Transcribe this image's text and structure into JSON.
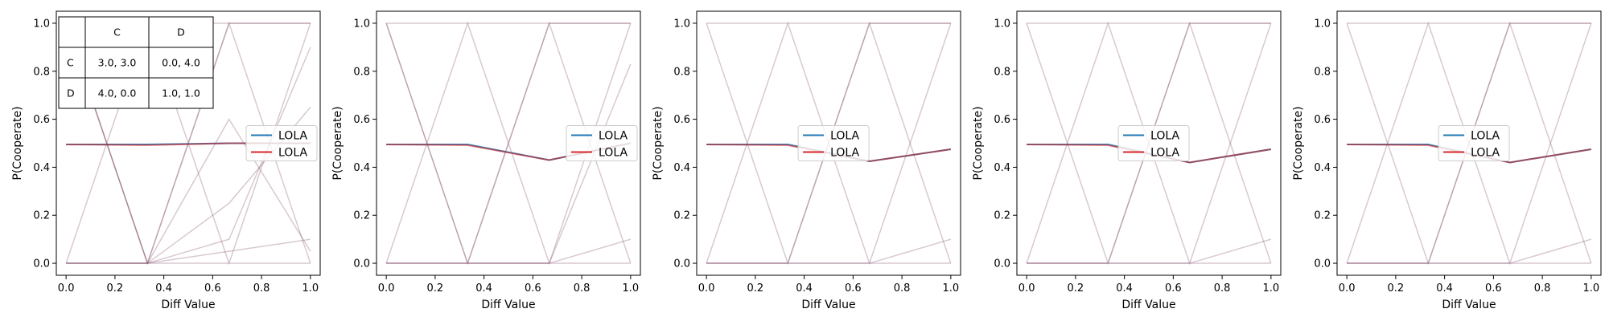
{
  "chart_data": [
    {
      "type": "line",
      "xlabel": "Diff Value",
      "ylabel": "P(Cooperate)",
      "xlim": [
        -0.04,
        1.04
      ],
      "ylim": [
        -0.05,
        1.05
      ],
      "xticks": [
        "0.0",
        "0.2",
        "0.4",
        "0.6",
        "0.8",
        "1.0"
      ],
      "yticks": [
        "0.0",
        "0.2",
        "0.4",
        "0.6",
        "0.8",
        "1.0"
      ],
      "legend": {
        "placement": "center-right",
        "entries": [
          {
            "label": "LOLA",
            "color": "#1f77b4"
          },
          {
            "label": "LOLA",
            "color": "#d62728"
          }
        ]
      },
      "x": [
        0,
        0.333,
        0.667,
        1.0
      ],
      "series": [
        {
          "color": "#1f77b4",
          "role": "mean",
          "values": [
            0.495,
            0.495,
            0.5,
            0.5
          ]
        },
        {
          "color": "#d62728",
          "role": "mean",
          "values": [
            0.495,
            0.492,
            0.5,
            0.5
          ]
        }
      ],
      "background_runs": [
        [
          1,
          0,
          1,
          0
        ],
        [
          0,
          1,
          0,
          1
        ],
        [
          1,
          1,
          1,
          1
        ],
        [
          0,
          0,
          0,
          0
        ],
        [
          0,
          0,
          1,
          1
        ],
        [
          1,
          0,
          0.6,
          0.05
        ],
        [
          0,
          0,
          0.25,
          0.65
        ],
        [
          1,
          0,
          0.1,
          0.9
        ],
        [
          0,
          0,
          0.05,
          0.1
        ]
      ],
      "payoff_table": {
        "col_headers": [
          "",
          "C",
          "D"
        ],
        "rows": [
          {
            "label": "C",
            "cells": [
              "3.0, 3.0",
              "0.0, 4.0"
            ]
          },
          {
            "label": "D",
            "cells": [
              "4.0, 0.0",
              "1.0, 1.0"
            ]
          }
        ]
      }
    },
    {
      "type": "line",
      "xlabel": "Diff Value",
      "ylabel": "P(Cooperate)",
      "xlim": [
        -0.04,
        1.04
      ],
      "ylim": [
        -0.05,
        1.05
      ],
      "xticks": [
        "0.0",
        "0.2",
        "0.4",
        "0.6",
        "0.8",
        "1.0"
      ],
      "yticks": [
        "0.0",
        "0.2",
        "0.4",
        "0.6",
        "0.8",
        "1.0"
      ],
      "legend": {
        "placement": "center-right",
        "entries": [
          {
            "label": "LOLA",
            "color": "#1f77b4"
          },
          {
            "label": "LOLA",
            "color": "#d62728"
          }
        ]
      },
      "x": [
        0,
        0.333,
        0.667,
        1.0
      ],
      "series": [
        {
          "color": "#1f77b4",
          "role": "mean",
          "values": [
            0.495,
            0.495,
            0.43,
            0.5
          ]
        },
        {
          "color": "#d62728",
          "role": "mean",
          "values": [
            0.495,
            0.492,
            0.43,
            0.5
          ]
        }
      ],
      "background_runs": [
        [
          1,
          0,
          1,
          0
        ],
        [
          0,
          1,
          0,
          1
        ],
        [
          1,
          1,
          1,
          1
        ],
        [
          0,
          0,
          0,
          0
        ],
        [
          0,
          0,
          1,
          1
        ],
        [
          1,
          0,
          0,
          0.83
        ],
        [
          0,
          0,
          0,
          0.1
        ]
      ]
    },
    {
      "type": "line",
      "xlabel": "Diff Value",
      "ylabel": "P(Cooperate)",
      "xlim": [
        -0.04,
        1.04
      ],
      "ylim": [
        -0.05,
        1.05
      ],
      "xticks": [
        "0.0",
        "0.2",
        "0.4",
        "0.6",
        "0.8",
        "1.0"
      ],
      "yticks": [
        "0.0",
        "0.2",
        "0.4",
        "0.6",
        "0.8",
        "1.0"
      ],
      "legend": {
        "placement": "center",
        "entries": [
          {
            "label": "LOLA",
            "color": "#1f77b4"
          },
          {
            "label": "LOLA",
            "color": "#d62728"
          }
        ]
      },
      "x": [
        0,
        0.333,
        0.667,
        1.0
      ],
      "series": [
        {
          "color": "#1f77b4",
          "role": "mean",
          "values": [
            0.495,
            0.495,
            0.425,
            0.475
          ]
        },
        {
          "color": "#d62728",
          "role": "mean",
          "values": [
            0.495,
            0.492,
            0.425,
            0.475
          ]
        }
      ],
      "background_runs": [
        [
          1,
          0,
          1,
          0
        ],
        [
          0,
          1,
          0,
          1
        ],
        [
          1,
          1,
          1,
          1
        ],
        [
          0,
          0,
          0,
          0
        ],
        [
          0,
          0,
          1,
          1
        ],
        [
          0,
          0,
          0,
          0.1
        ]
      ]
    },
    {
      "type": "line",
      "xlabel": "Diff Value",
      "ylabel": "P(Cooperate)",
      "xlim": [
        -0.04,
        1.04
      ],
      "ylim": [
        -0.05,
        1.05
      ],
      "xticks": [
        "0.0",
        "0.2",
        "0.4",
        "0.6",
        "0.8",
        "1.0"
      ],
      "yticks": [
        "0.0",
        "0.2",
        "0.4",
        "0.6",
        "0.8",
        "1.0"
      ],
      "legend": {
        "placement": "center",
        "entries": [
          {
            "label": "LOLA",
            "color": "#1f77b4"
          },
          {
            "label": "LOLA",
            "color": "#d62728"
          }
        ]
      },
      "x": [
        0,
        0.333,
        0.667,
        1.0
      ],
      "series": [
        {
          "color": "#1f77b4",
          "role": "mean",
          "values": [
            0.495,
            0.495,
            0.42,
            0.475
          ]
        },
        {
          "color": "#d62728",
          "role": "mean",
          "values": [
            0.495,
            0.492,
            0.42,
            0.475
          ]
        }
      ],
      "background_runs": [
        [
          1,
          0,
          1,
          0
        ],
        [
          0,
          1,
          0,
          1
        ],
        [
          1,
          1,
          1,
          1
        ],
        [
          0,
          0,
          0,
          0
        ],
        [
          0,
          0,
          1,
          1
        ],
        [
          0,
          0,
          0,
          0.1
        ]
      ]
    },
    {
      "type": "line",
      "xlabel": "Diff Value",
      "ylabel": "P(Cooperate)",
      "xlim": [
        -0.04,
        1.04
      ],
      "ylim": [
        -0.05,
        1.05
      ],
      "xticks": [
        "0.0",
        "0.2",
        "0.4",
        "0.6",
        "0.8",
        "1.0"
      ],
      "yticks": [
        "0.0",
        "0.2",
        "0.4",
        "0.6",
        "0.8",
        "1.0"
      ],
      "legend": {
        "placement": "center",
        "entries": [
          {
            "label": "LOLA",
            "color": "#1f77b4"
          },
          {
            "label": "LOLA",
            "color": "#d62728"
          }
        ]
      },
      "x": [
        0,
        0.333,
        0.667,
        1.0
      ],
      "series": [
        {
          "color": "#1f77b4",
          "role": "mean",
          "values": [
            0.495,
            0.495,
            0.42,
            0.475
          ]
        },
        {
          "color": "#d62728",
          "role": "mean",
          "values": [
            0.495,
            0.492,
            0.42,
            0.475
          ]
        }
      ],
      "background_runs": [
        [
          1,
          0,
          1,
          0
        ],
        [
          0,
          1,
          0,
          1
        ],
        [
          1,
          1,
          1,
          1
        ],
        [
          0,
          0,
          0,
          0
        ],
        [
          0,
          0,
          1,
          1
        ],
        [
          0,
          0,
          0,
          0.1
        ]
      ]
    }
  ]
}
